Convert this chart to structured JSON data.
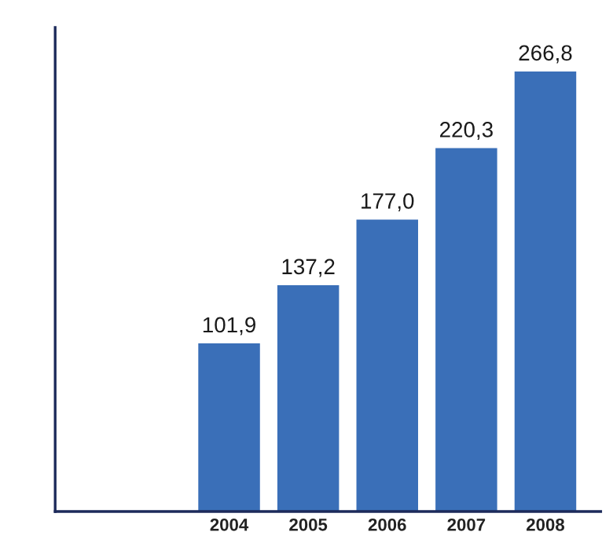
{
  "chart_data": {
    "type": "bar",
    "categories": [
      "2004",
      "2005",
      "2006",
      "2007",
      "2008"
    ],
    "values": [
      101.9,
      137.2,
      177.0,
      220.3,
      266.8
    ],
    "value_labels": [
      "101,9",
      "137,2",
      "177,0",
      "220,3",
      "266,8"
    ],
    "color": "#3a6fb8",
    "grid": false,
    "legend": false
  }
}
